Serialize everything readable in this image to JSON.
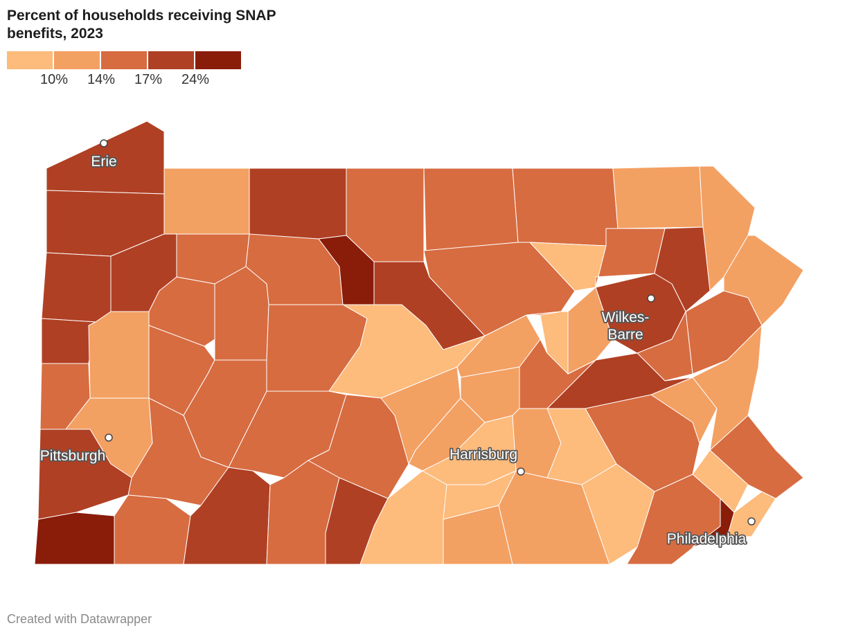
{
  "title": "Percent of households receiving SNAP benefits, 2023",
  "legend": {
    "colors": [
      "#fdbb7c",
      "#f3a063",
      "#d76c41",
      "#b04024",
      "#8a1c0a"
    ],
    "ticks": [
      "10%",
      "14%",
      "17%",
      "24%"
    ]
  },
  "cities": [
    {
      "name": "Erie"
    },
    {
      "name": "Pittsburgh"
    },
    {
      "name": "Harrisburg"
    },
    {
      "name": "Wilkes-Barre"
    },
    {
      "name": "Philadelphia"
    }
  ],
  "county_classes": [
    3,
    1,
    3,
    2,
    2,
    2,
    1,
    1,
    1,
    3,
    3,
    3,
    2,
    2,
    4,
    3,
    2,
    0,
    2,
    3,
    3,
    2,
    2,
    3,
    1,
    2,
    2,
    2,
    0,
    2,
    1,
    2,
    2,
    2,
    3,
    4,
    2,
    3,
    2,
    2,
    2,
    3,
    1,
    1,
    0,
    0,
    0,
    1,
    1,
    1,
    0,
    0,
    2,
    4,
    0,
    0,
    2,
    2,
    1,
    3,
    2,
    1,
    0,
    1,
    1
  ],
  "footer": "Created with Datawrapper"
}
